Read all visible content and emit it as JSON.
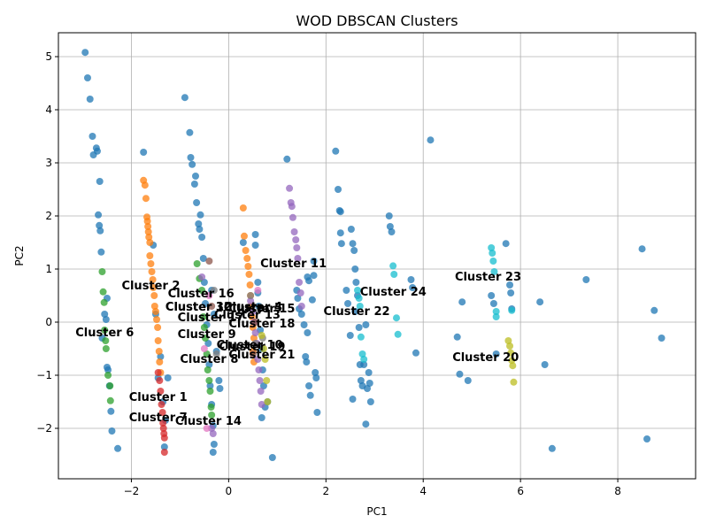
{
  "chart_data": {
    "type": "scatter",
    "title": "WOD DBSCAN Clusters",
    "xlabel": "PC1",
    "ylabel": "PC2",
    "xlim": [
      -3.5,
      9.6
    ],
    "ylim": [
      -2.95,
      5.45
    ],
    "xticks": [
      -2,
      0,
      2,
      4,
      6,
      8
    ],
    "yticks": [
      -2,
      -1,
      0,
      1,
      2,
      3,
      4,
      5
    ],
    "grid": true,
    "series": [
      {
        "color": "#1f77b4",
        "points": [
          [
            -2.95,
            5.08
          ],
          [
            -2.9,
            4.6
          ],
          [
            -2.85,
            4.2
          ],
          [
            -2.8,
            3.5
          ],
          [
            -2.78,
            3.15
          ],
          [
            -2.72,
            3.28
          ],
          [
            -2.7,
            3.22
          ],
          [
            -2.65,
            2.65
          ],
          [
            -2.68,
            2.02
          ],
          [
            -2.66,
            1.82
          ],
          [
            -2.64,
            1.72
          ],
          [
            -2.62,
            1.32
          ],
          [
            -2.55,
            0.15
          ],
          [
            -2.52,
            0.05
          ],
          [
            -2.5,
            -0.85
          ],
          [
            -2.48,
            -0.9
          ],
          [
            -2.45,
            -1.2
          ],
          [
            -2.42,
            -1.68
          ],
          [
            -2.4,
            -2.05
          ],
          [
            -2.28,
            -2.38
          ],
          [
            -2.5,
            0.45
          ],
          [
            -2.6,
            -0.3
          ],
          [
            -1.75,
            3.2
          ],
          [
            -1.55,
            1.45
          ],
          [
            -1.5,
            0.15
          ],
          [
            -1.45,
            -1.05
          ],
          [
            -1.35,
            -1.5
          ],
          [
            -1.3,
            -1.85
          ],
          [
            -1.32,
            -2.35
          ],
          [
            -1.4,
            -0.65
          ],
          [
            -1.25,
            -1.05
          ],
          [
            -0.9,
            4.23
          ],
          [
            -0.8,
            3.57
          ],
          [
            -0.78,
            3.1
          ],
          [
            -0.75,
            2.97
          ],
          [
            -0.7,
            2.6
          ],
          [
            -0.68,
            2.75
          ],
          [
            -0.66,
            2.25
          ],
          [
            -0.62,
            1.85
          ],
          [
            -0.6,
            1.75
          ],
          [
            -0.58,
            2.02
          ],
          [
            -0.55,
            1.6
          ],
          [
            -0.52,
            1.2
          ],
          [
            -0.5,
            0.75
          ],
          [
            -0.48,
            0.35
          ],
          [
            -0.45,
            -0.05
          ],
          [
            -0.42,
            -0.4
          ],
          [
            -0.4,
            -0.8
          ],
          [
            -0.38,
            -1.2
          ],
          [
            -0.35,
            -1.55
          ],
          [
            -0.32,
            -1.95
          ],
          [
            -0.3,
            -2.3
          ],
          [
            -0.32,
            -2.45
          ],
          [
            -0.35,
            0.6
          ],
          [
            -0.3,
            0.15
          ],
          [
            -0.25,
            -0.55
          ],
          [
            -0.2,
            -1.1
          ],
          [
            -0.18,
            -1.25
          ],
          [
            0.3,
            1.5
          ],
          [
            0.55,
            1.65
          ],
          [
            0.55,
            1.45
          ],
          [
            0.6,
            0.75
          ],
          [
            0.6,
            0.55
          ],
          [
            0.62,
            0.3
          ],
          [
            0.65,
            -0.15
          ],
          [
            0.68,
            -0.5
          ],
          [
            0.7,
            -0.9
          ],
          [
            0.72,
            -1.2
          ],
          [
            0.75,
            -1.6
          ],
          [
            0.8,
            -1.5
          ],
          [
            0.68,
            -1.8
          ],
          [
            0.9,
            -2.55
          ],
          [
            1.2,
            3.07
          ],
          [
            1.4,
            0.6
          ],
          [
            1.42,
            0.45
          ],
          [
            1.45,
            0.25
          ],
          [
            1.5,
            0.15
          ],
          [
            1.55,
            -0.05
          ],
          [
            1.58,
            -0.65
          ],
          [
            1.6,
            -0.75
          ],
          [
            1.62,
            -0.2
          ],
          [
            1.65,
            -1.2
          ],
          [
            1.68,
            -1.38
          ],
          [
            1.62,
            0.85
          ],
          [
            1.65,
            0.78
          ],
          [
            1.75,
            0.88
          ],
          [
            1.78,
            -0.95
          ],
          [
            1.8,
            -1.05
          ],
          [
            1.82,
            -1.7
          ],
          [
            1.75,
            1.15
          ],
          [
            1.72,
            0.42
          ],
          [
            2.2,
            3.22
          ],
          [
            2.25,
            2.5
          ],
          [
            2.28,
            2.1
          ],
          [
            2.3,
            1.68
          ],
          [
            2.32,
            1.48
          ],
          [
            2.3,
            2.08
          ],
          [
            2.42,
            0.6
          ],
          [
            2.45,
            0.35
          ],
          [
            2.5,
            -0.25
          ],
          [
            2.52,
            1.75
          ],
          [
            2.55,
            1.48
          ],
          [
            2.58,
            1.35
          ],
          [
            2.6,
            1.0
          ],
          [
            2.62,
            0.75
          ],
          [
            2.65,
            0.5
          ],
          [
            2.68,
            -0.1
          ],
          [
            2.7,
            -0.8
          ],
          [
            2.72,
            -1.1
          ],
          [
            2.75,
            -1.2
          ],
          [
            2.78,
            -0.8
          ],
          [
            2.82,
            -0.05
          ],
          [
            2.85,
            -1.25
          ],
          [
            2.88,
            -0.95
          ],
          [
            2.9,
            -1.15
          ],
          [
            2.92,
            -1.5
          ],
          [
            2.82,
            -1.92
          ],
          [
            2.55,
            -1.45
          ],
          [
            2.6,
            0.2
          ],
          [
            3.3,
            2.0
          ],
          [
            3.32,
            1.8
          ],
          [
            3.35,
            1.7
          ],
          [
            3.75,
            0.8
          ],
          [
            3.78,
            0.65
          ],
          [
            3.85,
            -0.58
          ],
          [
            4.15,
            3.43
          ],
          [
            4.7,
            -0.28
          ],
          [
            4.75,
            -0.98
          ],
          [
            4.8,
            0.38
          ],
          [
            4.92,
            -1.1
          ],
          [
            5.4,
            0.5
          ],
          [
            5.45,
            0.35
          ],
          [
            5.5,
            -0.6
          ],
          [
            5.7,
            1.48
          ],
          [
            5.78,
            0.7
          ],
          [
            5.8,
            0.55
          ],
          [
            5.82,
            0.25
          ],
          [
            6.4,
            0.38
          ],
          [
            6.5,
            -0.8
          ],
          [
            6.65,
            -2.38
          ],
          [
            7.35,
            0.8
          ],
          [
            8.5,
            1.38
          ],
          [
            8.6,
            -2.2
          ],
          [
            8.75,
            0.22
          ],
          [
            8.9,
            -0.3
          ]
        ]
      },
      {
        "color": "#ff7f0e",
        "points": [
          [
            -1.75,
            2.67
          ],
          [
            -1.72,
            2.58
          ],
          [
            -1.7,
            2.33
          ],
          [
            -1.68,
            1.98
          ],
          [
            -1.67,
            1.9
          ],
          [
            -1.66,
            1.8
          ],
          [
            -1.65,
            1.7
          ],
          [
            -1.64,
            1.6
          ],
          [
            -1.62,
            1.5
          ],
          [
            -1.62,
            1.25
          ],
          [
            -1.6,
            1.1
          ],
          [
            -1.58,
            0.95
          ],
          [
            -1.56,
            0.8
          ],
          [
            -1.55,
            0.65
          ],
          [
            -1.53,
            0.5
          ],
          [
            -1.52,
            0.3
          ],
          [
            -1.5,
            0.2
          ],
          [
            -1.48,
            0.05
          ],
          [
            -1.46,
            -0.1
          ],
          [
            -1.45,
            -0.35
          ],
          [
            -1.43,
            -0.55
          ],
          [
            -1.42,
            -0.75
          ],
          [
            -1.4,
            -0.95
          ],
          [
            0.3,
            2.15
          ],
          [
            0.32,
            1.62
          ],
          [
            0.35,
            1.35
          ],
          [
            0.38,
            1.2
          ],
          [
            0.4,
            1.05
          ],
          [
            0.42,
            0.9
          ],
          [
            0.44,
            0.7
          ],
          [
            0.45,
            0.5
          ],
          [
            0.46,
            0.3
          ],
          [
            0.48,
            0.1
          ],
          [
            0.5,
            -0.1
          ],
          [
            0.52,
            -0.3
          ],
          [
            0.5,
            -0.55
          ],
          [
            0.52,
            -0.75
          ]
        ]
      },
      {
        "color": "#2ca02c",
        "points": [
          [
            -2.6,
            0.95
          ],
          [
            -2.58,
            0.57
          ],
          [
            -2.56,
            0.37
          ],
          [
            -2.55,
            -0.15
          ],
          [
            -2.53,
            -0.35
          ],
          [
            -2.52,
            -0.5
          ],
          [
            -2.48,
            -1.0
          ],
          [
            -2.44,
            -1.2
          ],
          [
            -2.43,
            -1.48
          ],
          [
            -0.65,
            1.1
          ],
          [
            -0.6,
            0.82
          ],
          [
            -0.55,
            0.6
          ],
          [
            -0.52,
            0.1
          ],
          [
            -0.5,
            -0.1
          ],
          [
            -0.48,
            -0.3
          ],
          [
            -0.45,
            -0.6
          ],
          [
            -0.43,
            -0.9
          ],
          [
            -0.4,
            -1.1
          ],
          [
            -0.38,
            -1.3
          ],
          [
            -0.36,
            -1.6
          ],
          [
            -0.35,
            -1.75
          ]
        ]
      },
      {
        "color": "#d62728",
        "points": [
          [
            -1.45,
            -0.95
          ],
          [
            -1.42,
            -1.1
          ],
          [
            -1.4,
            -1.3
          ],
          [
            -1.38,
            -1.55
          ],
          [
            -1.36,
            -1.7
          ],
          [
            -1.35,
            -1.9
          ],
          [
            -1.34,
            -2.0
          ],
          [
            -1.33,
            -2.1
          ],
          [
            -1.32,
            -2.18
          ],
          [
            -1.32,
            -2.45
          ]
        ]
      },
      {
        "color": "#9467bd",
        "points": [
          [
            -0.55,
            0.85
          ],
          [
            -0.35,
            -2.0
          ],
          [
            -0.32,
            -2.1
          ],
          [
            0.45,
            0.4
          ],
          [
            0.5,
            0.2
          ],
          [
            0.52,
            0.0
          ],
          [
            0.55,
            -0.2
          ],
          [
            0.58,
            -0.4
          ],
          [
            0.6,
            -0.7
          ],
          [
            0.62,
            -0.9
          ],
          [
            0.64,
            -1.1
          ],
          [
            0.66,
            -1.3
          ],
          [
            0.68,
            -1.55
          ],
          [
            1.25,
            2.52
          ],
          [
            1.28,
            2.25
          ],
          [
            1.3,
            2.18
          ],
          [
            1.32,
            1.97
          ],
          [
            1.35,
            1.7
          ],
          [
            1.38,
            1.55
          ],
          [
            1.4,
            1.4
          ],
          [
            1.42,
            1.2
          ],
          [
            1.45,
            0.75
          ],
          [
            1.48,
            0.55
          ],
          [
            1.5,
            0.3
          ]
        ]
      },
      {
        "color": "#8c564b",
        "points": [
          [
            -0.4,
            1.15
          ],
          [
            -0.35,
            0.3
          ],
          [
            0.5,
            -0.6
          ],
          [
            0.55,
            0.0
          ]
        ]
      },
      {
        "color": "#e377c2",
        "points": [
          [
            -0.5,
            -0.5
          ],
          [
            -0.45,
            -2.0
          ],
          [
            -0.4,
            0.5
          ],
          [
            0.6,
            0.6
          ]
        ]
      },
      {
        "color": "#7f7f7f",
        "points": [
          [
            -0.3,
            0.6
          ],
          [
            -0.25,
            -0.6
          ],
          [
            0.45,
            0.5
          ],
          [
            0.55,
            -0.4
          ],
          [
            0.7,
            -0.3
          ]
        ]
      },
      {
        "color": "#bcbd22",
        "points": [
          [
            0.68,
            -0.25
          ],
          [
            0.72,
            -0.5
          ],
          [
            0.75,
            -0.7
          ],
          [
            0.78,
            -1.1
          ],
          [
            0.8,
            -1.5
          ],
          [
            5.75,
            -0.35
          ],
          [
            5.78,
            -0.45
          ],
          [
            5.8,
            -0.58
          ],
          [
            5.82,
            -0.72
          ],
          [
            5.84,
            -0.82
          ],
          [
            5.86,
            -1.13
          ]
        ]
      },
      {
        "color": "#17becf",
        "points": [
          [
            2.65,
            0.6
          ],
          [
            2.68,
            0.45
          ],
          [
            2.7,
            0.3
          ],
          [
            2.72,
            -0.28
          ],
          [
            2.75,
            -0.6
          ],
          [
            2.78,
            -0.7
          ],
          [
            3.38,
            1.06
          ],
          [
            3.4,
            0.9
          ],
          [
            3.45,
            0.08
          ],
          [
            3.48,
            -0.23
          ],
          [
            5.4,
            1.4
          ],
          [
            5.42,
            1.3
          ],
          [
            5.44,
            1.15
          ],
          [
            5.46,
            0.95
          ],
          [
            5.5,
            0.2
          ],
          [
            5.5,
            0.1
          ],
          [
            5.82,
            0.22
          ]
        ]
      }
    ],
    "annotations": [
      {
        "text": "Cluster 1",
        "x": -2.05,
        "y": -1.4
      },
      {
        "text": "Cluster 2",
        "x": -2.2,
        "y": 0.7
      },
      {
        "text": "Cluster 3",
        "x": -1.3,
        "y": 0.3
      },
      {
        "text": "Cluster 4",
        "x": -0.1,
        "y": 0.3
      },
      {
        "text": "Cluster 5",
        "x": -0.1,
        "y": 0.28
      },
      {
        "text": "Cluster 6",
        "x": -3.15,
        "y": -0.18
      },
      {
        "text": "Cluster 7",
        "x": -2.05,
        "y": -1.78
      },
      {
        "text": "Cluster 8",
        "x": -1.0,
        "y": -0.68
      },
      {
        "text": "Cluster 9",
        "x": -1.05,
        "y": -0.22
      },
      {
        "text": "Cluster 10",
        "x": -0.25,
        "y": -0.42
      },
      {
        "text": "Cluster 11",
        "x": 0.65,
        "y": 1.12
      },
      {
        "text": "Cluster 12",
        "x": -1.3,
        "y": 0.3
      },
      {
        "text": "Cluster 13",
        "x": -0.3,
        "y": 0.15
      },
      {
        "text": "Cluster 14",
        "x": -1.1,
        "y": -1.85
      },
      {
        "text": "Cluster 15",
        "x": 0.0,
        "y": 0.27
      },
      {
        "text": "Cluster 16",
        "x": -1.25,
        "y": 0.55
      },
      {
        "text": "Cluster 17",
        "x": -1.05,
        "y": 0.1
      },
      {
        "text": "Cluster 18",
        "x": 0.0,
        "y": -0.02
      },
      {
        "text": "Cluster 19",
        "x": -0.2,
        "y": -0.45
      },
      {
        "text": "Cluster 20",
        "x": 4.6,
        "y": -0.65
      },
      {
        "text": "Cluster 21",
        "x": 0.0,
        "y": -0.6
      },
      {
        "text": "Cluster 22",
        "x": 1.95,
        "y": 0.22
      },
      {
        "text": "Cluster 23",
        "x": 4.65,
        "y": 0.87
      },
      {
        "text": "Cluster 24",
        "x": 2.7,
        "y": 0.58
      }
    ]
  }
}
